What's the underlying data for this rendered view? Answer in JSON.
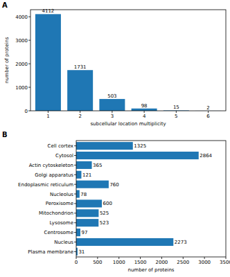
{
  "chart_data": [
    {
      "type": "bar",
      "title": "A",
      "categories": [
        "1",
        "2",
        "3",
        "4",
        "5",
        "6"
      ],
      "values": [
        4112,
        1731,
        503,
        98,
        15,
        2
      ],
      "color": "#1f77b4",
      "xlabel": "subcellular location multiplicity",
      "ylabel": "number of proteins",
      "ylim": [
        0,
        4300
      ],
      "yticks": [
        0,
        1000,
        2000,
        3000,
        4000
      ],
      "data_labels": true
    },
    {
      "type": "bar",
      "title": "B",
      "orientation": "horizontal",
      "categories": [
        "Cell cortex",
        "Cytosol",
        "Actin cytoskeleton",
        "Golgi apparatus",
        "Endoplasmic reticulum",
        "Nucleolus",
        "Peroxisome",
        "Mitochondrion",
        "Lysosome",
        "Centrosome",
        "Nucleus",
        "Plasma membrane"
      ],
      "values": [
        1325,
        2864,
        365,
        121,
        760,
        78,
        600,
        525,
        523,
        97,
        2273,
        31
      ],
      "color": "#1f77b4",
      "xlabel": "number of proteins",
      "xlim": [
        0,
        3500
      ],
      "xticks": [
        0,
        500,
        1000,
        1500,
        2000,
        2500,
        3000,
        3500
      ],
      "data_labels": true
    }
  ]
}
